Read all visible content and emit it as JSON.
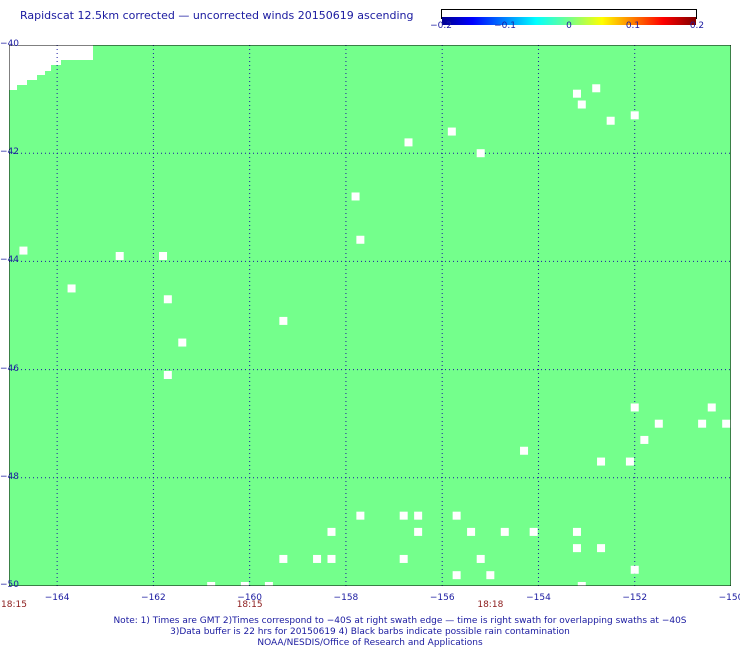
{
  "title": "Rapidscat 12.5km corrected — uncorrected winds 20150619 ascending",
  "colorbar": {
    "ticks": [
      "−0.2",
      "−0.1",
      "0",
      "0.1",
      "0.2"
    ],
    "tick_values": [
      -0.2,
      -0.1,
      0,
      0.1,
      0.2
    ]
  },
  "map": {
    "lon_range": [
      -165,
      -150
    ],
    "lat_range": [
      -50,
      -40
    ],
    "land_color": "#74ff8c",
    "missing_color": "#ffffff",
    "grid": "dotted",
    "lat_labels": [
      "−40",
      "−42",
      "−44",
      "−46",
      "−48",
      "−50"
    ],
    "lat_values": [
      -40,
      -42,
      -44,
      -46,
      -48,
      -50
    ],
    "lon_labels": [
      "−164",
      "−162",
      "−160",
      "−158",
      "−156",
      "−154",
      "−152",
      "−150"
    ],
    "lon_values": [
      -164,
      -162,
      -160,
      -158,
      -156,
      -154,
      -152,
      -150
    ],
    "time_labels": [
      {
        "text": "18:15",
        "lon": -165
      },
      {
        "text": "18:15",
        "lon": -160
      },
      {
        "text": "18:18",
        "lon": -155
      }
    ],
    "missing_cells": [
      {
        "lon": -164.7,
        "lat": -43.8
      },
      {
        "lon": -163.7,
        "lat": -44.5
      },
      {
        "lon": -162.7,
        "lat": -43.9
      },
      {
        "lon": -161.8,
        "lat": -43.9
      },
      {
        "lon": -161.7,
        "lat": -44.7
      },
      {
        "lon": -161.4,
        "lat": -45.5
      },
      {
        "lon": -161.7,
        "lat": -46.1
      },
      {
        "lon": -159.3,
        "lat": -45.1
      },
      {
        "lon": -157.8,
        "lat": -42.8
      },
      {
        "lon": -157.7,
        "lat": -43.6
      },
      {
        "lon": -156.7,
        "lat": -41.8
      },
      {
        "lon": -155.8,
        "lat": -41.6
      },
      {
        "lon": -155.2,
        "lat": -42.0
      },
      {
        "lon": -153.2,
        "lat": -40.9
      },
      {
        "lon": -153.1,
        "lat": -41.1
      },
      {
        "lon": -152.8,
        "lat": -40.8
      },
      {
        "lon": -152.5,
        "lat": -41.4
      },
      {
        "lon": -152.0,
        "lat": -41.3
      },
      {
        "lon": -152.0,
        "lat": -46.7
      },
      {
        "lon": -151.8,
        "lat": -47.3
      },
      {
        "lon": -151.5,
        "lat": -47.0
      },
      {
        "lon": -150.6,
        "lat": -47.0
      },
      {
        "lon": -150.4,
        "lat": -46.7
      },
      {
        "lon": -150.1,
        "lat": -47.0
      },
      {
        "lon": -154.3,
        "lat": -47.5
      },
      {
        "lon": -152.7,
        "lat": -47.7
      },
      {
        "lon": -152.1,
        "lat": -47.7
      },
      {
        "lon": -157.7,
        "lat": -48.7
      },
      {
        "lon": -156.8,
        "lat": -48.7
      },
      {
        "lon": -156.5,
        "lat": -48.7
      },
      {
        "lon": -155.7,
        "lat": -48.7
      },
      {
        "lon": -158.3,
        "lat": -49.0
      },
      {
        "lon": -156.5,
        "lat": -49.0
      },
      {
        "lon": -155.4,
        "lat": -49.0
      },
      {
        "lon": -154.7,
        "lat": -49.0
      },
      {
        "lon": -154.1,
        "lat": -49.0
      },
      {
        "lon": -153.2,
        "lat": -49.0
      },
      {
        "lon": -159.3,
        "lat": -49.5
      },
      {
        "lon": -158.6,
        "lat": -49.5
      },
      {
        "lon": -158.3,
        "lat": -49.5
      },
      {
        "lon": -156.8,
        "lat": -49.5
      },
      {
        "lon": -155.2,
        "lat": -49.5
      },
      {
        "lon": -153.2,
        "lat": -49.3
      },
      {
        "lon": -152.7,
        "lat": -49.3
      },
      {
        "lon": -152.0,
        "lat": -49.7
      },
      {
        "lon": -155.7,
        "lat": -49.8
      },
      {
        "lon": -155.0,
        "lat": -49.8
      },
      {
        "lon": -160.8,
        "lat": -50.0
      },
      {
        "lon": -160.1,
        "lat": -50.0
      },
      {
        "lon": -159.6,
        "lat": -50.0
      },
      {
        "lon": -153.1,
        "lat": -50.0
      }
    ]
  },
  "notes": [
    "Note: 1) Times are GMT 2)Times correspond to −40S at right swath edge — time is right swath for overlapping swaths at −40S",
    "3)Data buffer is 22 hrs for 20150619 4) Black barbs indicate possible rain contamination",
    "NOAA/NESDIS/Office of Research and Applications"
  ]
}
